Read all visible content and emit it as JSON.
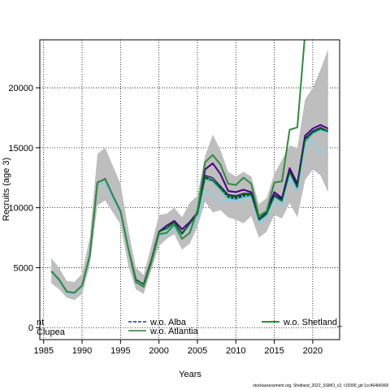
{
  "chart_data": {
    "type": "line",
    "xlabel": "Years",
    "ylabel": "Recruits (age 3)",
    "xlim": [
      1984.5,
      2023.5
    ],
    "ylim": [
      -1000,
      24000
    ],
    "xticks": [
      1985,
      1990,
      1995,
      2000,
      2005,
      2010,
      2015,
      2020
    ],
    "yticks": [
      0,
      5000,
      10000,
      15000,
      20000
    ],
    "grid": true,
    "x": [
      1986,
      1987,
      1988,
      1989,
      1990,
      1991,
      1992,
      1993,
      1994,
      1995,
      1996,
      1997,
      1998,
      1999,
      2000,
      2001,
      2002,
      2003,
      2004,
      2005,
      2006,
      2007,
      2008,
      2009,
      2010,
      2011,
      2012,
      2013,
      2014,
      2015,
      2016,
      2017,
      2018,
      2019,
      2020,
      2021,
      2022
    ],
    "band": {
      "color": "#bebebe",
      "upper": [
        5800,
        5000,
        3900,
        3800,
        4500,
        7500,
        14500,
        15000,
        13500,
        12000,
        8200,
        5000,
        4400,
        6800,
        9400,
        9500,
        10000,
        9200,
        10400,
        11000,
        14300,
        16100,
        14800,
        13000,
        12600,
        13000,
        12600,
        10300,
        10800,
        12800,
        14000,
        15200,
        15000,
        19000,
        20000,
        21500,
        23200
      ],
      "lower": [
        3700,
        3200,
        2500,
        2300,
        2800,
        5200,
        10200,
        10600,
        9600,
        8600,
        5200,
        3200,
        2800,
        4800,
        6800,
        7400,
        7800,
        6500,
        7000,
        8400,
        10500,
        9600,
        9800,
        9200,
        9000,
        8700,
        9300,
        7500,
        8000,
        9400,
        9100,
        10400,
        9200,
        12300,
        13200,
        12700,
        11300
      ]
    },
    "series": [
      {
        "name": "",
        "color": "#000000",
        "dash": "3,2",
        "width": 1.5,
        "values": [
          4700,
          4000,
          3000,
          2900,
          3500,
          6000,
          12100,
          12400,
          11000,
          9700,
          6600,
          4000,
          3600,
          5600,
          8000,
          8300,
          8800,
          7800,
          8700,
          9500,
          12500,
          12200,
          11600,
          10900,
          10800,
          11000,
          11100,
          9000,
          9500,
          11000,
          10600,
          13000,
          11700,
          15600,
          16300,
          16600,
          16400
        ]
      },
      {
        "name": "",
        "color": "#4b0082",
        "dash": "",
        "width": 2,
        "values": [
          4700,
          4000,
          3000,
          2900,
          3500,
          6000,
          12100,
          12400,
          11000,
          9700,
          6600,
          4000,
          3600,
          5600,
          8000,
          8500,
          8900,
          8200,
          8800,
          9600,
          13200,
          13700,
          12800,
          11400,
          11300,
          11500,
          11300,
          9300,
          9700,
          11300,
          10800,
          13300,
          12000,
          16000,
          16600,
          16900,
          16600
        ]
      },
      {
        "name": "",
        "color": "#191970",
        "dash": "",
        "width": 1.2,
        "values": [
          4700,
          4000,
          3000,
          2900,
          3500,
          6000,
          12100,
          12400,
          11000,
          9700,
          6600,
          4000,
          3600,
          5600,
          8000,
          8300,
          8800,
          7900,
          8700,
          9500,
          12700,
          12500,
          11800,
          11100,
          11000,
          11200,
          11200,
          9100,
          9600,
          11100,
          10700,
          13100,
          11800,
          15800,
          16400,
          16700,
          16400
        ]
      },
      {
        "name": "",
        "color": "#20b2aa",
        "dash": "",
        "width": 1.5,
        "values": [
          4700,
          4000,
          3000,
          2900,
          3500,
          6000,
          12100,
          12400,
          11000,
          9700,
          6600,
          4000,
          3600,
          5600,
          8000,
          8200,
          8700,
          7800,
          8600,
          9400,
          12400,
          12200,
          11500,
          10800,
          10700,
          10900,
          11000,
          8900,
          9400,
          10900,
          10500,
          12900,
          11600,
          15500,
          16200,
          16500,
          16300
        ]
      },
      {
        "name": "",
        "color": "#87ceeb",
        "dash": "",
        "width": 1.5,
        "values": [
          4600,
          3900,
          2900,
          2800,
          3400,
          5800,
          11800,
          12100,
          10700,
          9400,
          6400,
          3900,
          3500,
          5400,
          7700,
          7800,
          8300,
          7400,
          8000,
          8800,
          11500,
          11100,
          10400,
          10600,
          10500,
          10700,
          10900,
          8700,
          9100,
          10600,
          10200,
          12500,
          11300,
          15000,
          15600,
          14400,
          15000
        ]
      },
      {
        "name": "w.o. Alba",
        "color": "#1e3a8a",
        "dash": "4,2",
        "width": 1.5,
        "values": [
          4700,
          4000,
          3000,
          2900,
          3500,
          6000,
          12100,
          12400,
          11000,
          9700,
          6600,
          4000,
          3600,
          5600,
          8000,
          8300,
          8800,
          7800,
          8700,
          9500,
          12600,
          12300,
          11700,
          11000,
          10900,
          11100,
          11100,
          9000,
          9500,
          11000,
          10600,
          13000,
          11700,
          15700,
          16300,
          16600,
          16400
        ]
      },
      {
        "name": "w.o. Atlantia",
        "color": "#006400",
        "dash": "",
        "width": 1.2,
        "values": [
          4700,
          4000,
          3000,
          2900,
          3500,
          6000,
          12100,
          12400,
          11000,
          9700,
          6600,
          4000,
          3600,
          5600,
          8000,
          8300,
          8800,
          7800,
          8700,
          9500,
          12600,
          12300,
          11700,
          11000,
          10900,
          11100,
          11100,
          9000,
          9500,
          11000,
          10600,
          13000,
          11700,
          15700,
          16300,
          16600,
          16400
        ]
      },
      {
        "name": "w.o. Shetland_",
        "color": "#2e8b3d",
        "dash": "",
        "width": 2,
        "values": [
          4700,
          4000,
          3000,
          2900,
          3500,
          6000,
          12100,
          12400,
          11000,
          9700,
          6600,
          3800,
          3400,
          5400,
          7800,
          7900,
          8600,
          7400,
          7900,
          9800,
          13800,
          14400,
          13600,
          12000,
          11900,
          12500,
          12000,
          9300,
          9700,
          12100,
          12200,
          16500,
          16700,
          24500,
          null,
          null,
          null
        ]
      }
    ],
    "legend_partial": [
      "nt",
      "Clupea"
    ]
  },
  "footer": "stockassessment.org, Shetland_2022_SSMO_v2, r19390_git:1cc464b6068"
}
